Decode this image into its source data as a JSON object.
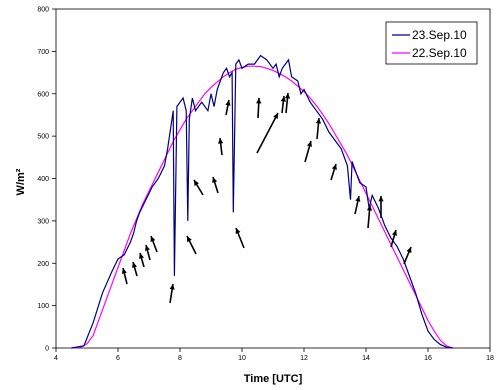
{
  "chart_data": {
    "type": "line",
    "title": "",
    "xlabel": "Time [UTC]",
    "ylabel": "W/m²",
    "xlim": [
      4,
      18
    ],
    "ylim": [
      0,
      800
    ],
    "x_ticks": [
      4,
      6,
      8,
      10,
      12,
      14,
      16,
      18
    ],
    "y_ticks": [
      0,
      100,
      200,
      300,
      400,
      500,
      600,
      700,
      800
    ],
    "grid": false,
    "legend_position": "top-right",
    "series": [
      {
        "name": "23.Sep.10",
        "color": "#000080",
        "x": [
          4.5,
          4.9,
          5.2,
          5.5,
          5.8,
          6.0,
          6.2,
          6.4,
          6.5,
          6.6,
          6.7,
          6.9,
          7.1,
          7.3,
          7.5,
          7.6,
          7.7,
          7.78,
          7.82,
          7.9,
          8.0,
          8.1,
          8.2,
          8.25,
          8.3,
          8.4,
          8.5,
          8.7,
          8.9,
          9.0,
          9.1,
          9.2,
          9.3,
          9.4,
          9.5,
          9.6,
          9.68,
          9.72,
          9.8,
          9.9,
          10.0,
          10.2,
          10.4,
          10.6,
          10.8,
          11.0,
          11.1,
          11.2,
          11.3,
          11.5,
          11.6,
          11.8,
          11.9,
          12.0,
          12.2,
          12.4,
          12.6,
          12.8,
          13.0,
          13.2,
          13.4,
          13.5,
          13.55,
          13.6,
          13.8,
          14.0,
          14.1,
          14.2,
          14.4,
          14.6,
          14.8,
          15.0,
          15.2,
          15.4,
          15.6,
          15.8,
          16.0,
          16.2,
          16.4,
          16.6,
          16.8
        ],
        "y": [
          0,
          5,
          60,
          130,
          180,
          210,
          220,
          250,
          270,
          300,
          320,
          350,
          380,
          400,
          430,
          470,
          520,
          560,
          170,
          570,
          580,
          590,
          560,
          300,
          540,
          590,
          560,
          580,
          560,
          600,
          570,
          610,
          630,
          650,
          660,
          640,
          650,
          320,
          670,
          680,
          660,
          670,
          670,
          690,
          680,
          660,
          670,
          640,
          660,
          680,
          640,
          630,
          600,
          610,
          580,
          560,
          540,
          510,
          490,
          470,
          430,
          350,
          440,
          430,
          390,
          380,
          330,
          360,
          330,
          290,
          260,
          240,
          210,
          170,
          130,
          80,
          40,
          20,
          8,
          2,
          0
        ]
      },
      {
        "name": "22.Sep.10",
        "color": "#ff00ff",
        "x": [
          4.5,
          4.8,
          5.0,
          5.2,
          5.4,
          5.6,
          5.8,
          6.0,
          6.2,
          6.4,
          6.6,
          6.8,
          7.0,
          7.2,
          7.4,
          7.6,
          7.8,
          8.0,
          8.2,
          8.4,
          8.6,
          8.8,
          9.0,
          9.2,
          9.4,
          9.6,
          9.8,
          10.0,
          10.2,
          10.4,
          10.6,
          10.8,
          11.0,
          11.2,
          11.4,
          11.6,
          11.8,
          12.0,
          12.2,
          12.4,
          12.6,
          12.8,
          13.0,
          13.2,
          13.4,
          13.6,
          13.8,
          14.0,
          14.2,
          14.4,
          14.6,
          14.8,
          15.0,
          15.2,
          15.4,
          15.6,
          15.8,
          16.0,
          16.2,
          16.4,
          16.6,
          16.8
        ],
        "y": [
          0,
          2,
          10,
          30,
          70,
          110,
          150,
          190,
          230,
          270,
          305,
          340,
          370,
          400,
          430,
          460,
          490,
          515,
          540,
          560,
          580,
          600,
          615,
          628,
          640,
          650,
          658,
          662,
          665,
          665,
          664,
          660,
          655,
          648,
          640,
          630,
          618,
          605,
          590,
          572,
          552,
          530,
          505,
          480,
          455,
          425,
          395,
          365,
          335,
          305,
          275,
          245,
          215,
          185,
          155,
          125,
          95,
          65,
          40,
          18,
          5,
          0
        ]
      }
    ],
    "annotations": {
      "type": "arrows",
      "count": 27
    }
  }
}
